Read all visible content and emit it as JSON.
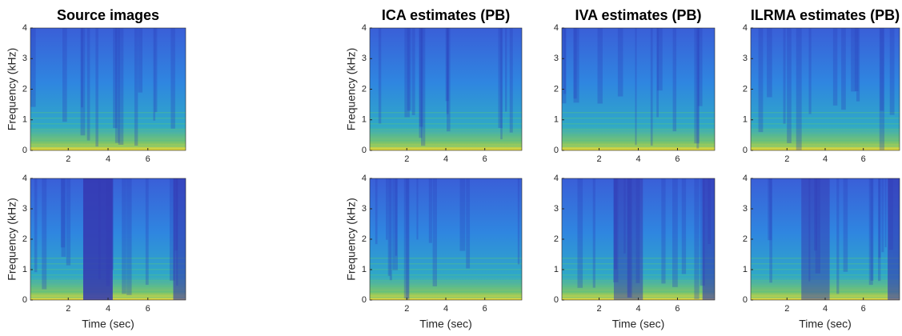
{
  "chart_data": [
    {
      "type": "heatmap",
      "title": "Source images",
      "ylabel": "Frequency (kHz)",
      "xlim": [
        0.1,
        7.9
      ],
      "xticks": [
        2,
        4,
        6
      ],
      "ylim": [
        0,
        4
      ],
      "yticks": [
        0,
        1,
        2,
        3,
        4
      ]
    },
    {
      "type": "heatmap",
      "title": "ICA estimates (PB)",
      "ylabel": "Frequency (kHz)",
      "xlim": [
        0.1,
        7.9
      ],
      "xticks": [
        2,
        4,
        6
      ],
      "ylim": [
        0,
        4
      ],
      "yticks": [
        0,
        1,
        2,
        3,
        4
      ]
    },
    {
      "type": "heatmap",
      "title": "IVA estimates (PB)",
      "xlim": [
        0.1,
        7.9
      ],
      "xticks": [
        2,
        4,
        6
      ],
      "ylim": [
        0,
        4
      ],
      "yticks": [
        0,
        1,
        2,
        3,
        4
      ]
    },
    {
      "type": "heatmap",
      "title": "ILRMA estimates (PB)",
      "xlim": [
        0.1,
        7.9
      ],
      "xticks": [
        2,
        4,
        6
      ],
      "ylim": [
        0,
        4
      ],
      "yticks": [
        0,
        1,
        2,
        3,
        4
      ]
    },
    {
      "type": "heatmap",
      "ylabel": "Frequency (kHz)",
      "xlabel": "Time (sec)",
      "xlim": [
        0.1,
        7.9
      ],
      "xticks": [
        2,
        4,
        6
      ],
      "ylim": [
        0,
        4
      ],
      "yticks": [
        0,
        1,
        2,
        3,
        4
      ]
    },
    {
      "type": "heatmap",
      "ylabel": "Frequency (kHz)",
      "xlabel": "Time (sec)",
      "xlim": [
        0.1,
        7.9
      ],
      "xticks": [
        2,
        4,
        6
      ],
      "ylim": [
        0,
        4
      ],
      "yticks": [
        0,
        1,
        2,
        3,
        4
      ]
    },
    {
      "type": "heatmap",
      "xlabel": "Time (sec)",
      "xlim": [
        0.1,
        7.9
      ],
      "xticks": [
        2,
        4,
        6
      ],
      "ylim": [
        0,
        4
      ],
      "yticks": [
        0,
        1,
        2,
        3,
        4
      ]
    },
    {
      "type": "heatmap",
      "xlabel": "Time (sec)",
      "xlim": [
        0.1,
        7.9
      ],
      "xticks": [
        2,
        4,
        6
      ],
      "ylim": [
        0,
        4
      ],
      "yticks": [
        0,
        1,
        2,
        3,
        4
      ]
    }
  ]
}
